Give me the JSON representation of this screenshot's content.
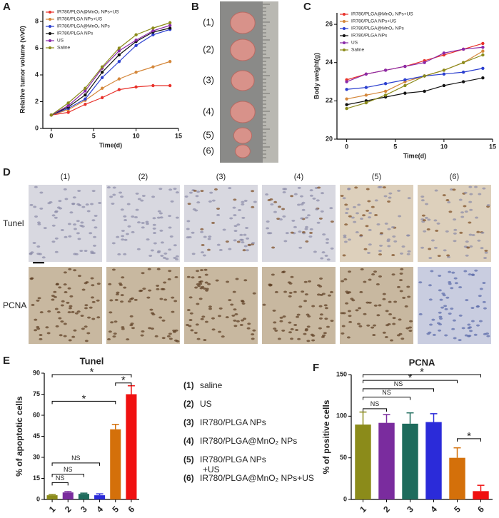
{
  "panel_labels": [
    "A",
    "B",
    "C",
    "D",
    "E",
    "F"
  ],
  "tumor_photo": {
    "labels": [
      "(1)",
      "(2)",
      "(3)",
      "(4)",
      "(5)",
      "(6)"
    ]
  },
  "staining": {
    "columns": [
      "(1)",
      "(2)",
      "(3)",
      "(4)",
      "(5)",
      "(6)"
    ],
    "rows": [
      "Tunel",
      "PCNA"
    ]
  },
  "chart_data": [
    {
      "type": "line",
      "ylabel": "Relative tumor volume (v/v0)",
      "xlabel": "Time(d)",
      "x": [
        0,
        2,
        4,
        6,
        8,
        10,
        12,
        14
      ],
      "xlim": [
        -1,
        15
      ],
      "xticks": [
        0,
        5,
        10,
        15
      ],
      "ylim": [
        0,
        8.8
      ],
      "yticks": [
        0,
        2,
        4,
        6,
        8
      ],
      "series": [
        {
          "name": "IR780/PLGA@MnO₂ NPs+US",
          "color": "#e8312a",
          "values": [
            1,
            1.2,
            1.8,
            2.3,
            2.9,
            3.1,
            3.2,
            3.2
          ]
        },
        {
          "name": "IR780/PLGA NPs+US",
          "color": "#d4873a",
          "values": [
            1,
            1.4,
            2.1,
            3.0,
            3.7,
            4.2,
            4.6,
            5.0
          ]
        },
        {
          "name": "IR780/PLGA@MnO₂ NPs",
          "color": "#2b3fcf",
          "values": [
            1,
            1.5,
            2.2,
            3.8,
            5.0,
            6.2,
            7.0,
            7.4
          ]
        },
        {
          "name": "IR780/PLGA NPs",
          "color": "#111111",
          "values": [
            1,
            1.6,
            2.5,
            4.2,
            5.5,
            6.5,
            7.2,
            7.5
          ]
        },
        {
          "name": "US",
          "color": "#8a2aa8",
          "values": [
            1,
            1.7,
            2.8,
            4.5,
            5.8,
            6.6,
            7.3,
            7.7
          ]
        },
        {
          "name": "Saline",
          "color": "#8b8b1a",
          "values": [
            1,
            1.9,
            3.0,
            4.6,
            6.0,
            7.0,
            7.5,
            7.9
          ]
        }
      ]
    },
    {
      "type": "line",
      "ylabel": "Body weight(g)",
      "xlabel": "Time(d)",
      "x": [
        0,
        2,
        4,
        6,
        8,
        10,
        12,
        14
      ],
      "xlim": [
        -1,
        15
      ],
      "xticks": [
        0,
        5,
        10,
        15
      ],
      "ylim": [
        20,
        26.6
      ],
      "yticks": [
        20,
        22,
        24,
        26
      ],
      "series": [
        {
          "name": "IR780/PLGA@MnO₂ NPs+US",
          "color": "#e8312a",
          "values": [
            23.1,
            23.4,
            23.6,
            23.8,
            24.1,
            24.4,
            24.7,
            25.0
          ]
        },
        {
          "name": "IR780/PLGA NPs+US",
          "color": "#d4873a",
          "values": [
            22.1,
            22.3,
            22.5,
            23.0,
            23.3,
            23.6,
            24.0,
            24.6
          ]
        },
        {
          "name": "IR780/PLGA@MnO₂ NPs",
          "color": "#2b3fcf",
          "values": [
            22.6,
            22.7,
            22.9,
            23.1,
            23.3,
            23.4,
            23.5,
            23.7
          ]
        },
        {
          "name": "IR780/PLGA NPs",
          "color": "#111111",
          "values": [
            21.8,
            22.0,
            22.2,
            22.4,
            22.5,
            22.8,
            23.0,
            23.2
          ]
        },
        {
          "name": "US",
          "color": "#8a2aa8",
          "values": [
            23.0,
            23.4,
            23.6,
            23.8,
            24.0,
            24.5,
            24.7,
            24.8
          ]
        },
        {
          "name": "Saline",
          "color": "#8b8b1a",
          "values": [
            21.6,
            21.9,
            22.3,
            22.8,
            23.3,
            23.6,
            24.0,
            24.4
          ]
        }
      ]
    },
    {
      "type": "bar",
      "title": "Tunel",
      "ylabel": "% of apoptotic cells",
      "categories": [
        "1",
        "2",
        "3",
        "4",
        "5",
        "6"
      ],
      "values": [
        3,
        5,
        4,
        3,
        50,
        75
      ],
      "errors": [
        0.5,
        0.6,
        0.5,
        1,
        3.5,
        6
      ],
      "colors": [
        "#8b8b1a",
        "#7a2c9e",
        "#1e6b5c",
        "#2b2bd9",
        "#d4700a",
        "#f01010"
      ],
      "ylim": [
        0,
        90
      ],
      "yticks": [
        0,
        15,
        30,
        45,
        60,
        75,
        90
      ],
      "annotations": [
        "NS",
        "NS",
        "NS",
        "*",
        "*",
        "*"
      ],
      "legend_items": [
        {
          "number": "(1)",
          "text": "saline",
          "color": "#8b8b1a"
        },
        {
          "number": "(2)",
          "text": "US",
          "color": "#7a2c9e"
        },
        {
          "number": "(3)",
          "text": "IR780/PLGA NPs",
          "color": "#1e6b5c"
        },
        {
          "number": "(4)",
          "text": "IR780/PLGA@MnO₂ NPs",
          "color": "#2b2bd9"
        },
        {
          "number": "(5)",
          "text": "IR780/PLGA NPs +US",
          "color": "#d4a20a"
        },
        {
          "number": "(6)",
          "text": "IR780/PLGA@MnO₂ NPs+US",
          "color": "#f01010"
        }
      ]
    },
    {
      "type": "bar",
      "title": "PCNA",
      "ylabel": "% of positive cells",
      "categories": [
        "1",
        "2",
        "3",
        "4",
        "5",
        "6"
      ],
      "values": [
        90,
        92,
        91,
        93,
        50,
        10
      ],
      "errors": [
        15,
        10,
        13,
        10,
        12,
        7
      ],
      "colors": [
        "#8b8b1a",
        "#7a2c9e",
        "#1e6b5c",
        "#2b2bd9",
        "#d4700a",
        "#f01010"
      ],
      "ylim": [
        0,
        150
      ],
      "yticks": [
        0,
        50,
        100,
        150
      ],
      "annotations": [
        "NS",
        "NS",
        "NS",
        "*",
        "*",
        "*"
      ]
    }
  ]
}
